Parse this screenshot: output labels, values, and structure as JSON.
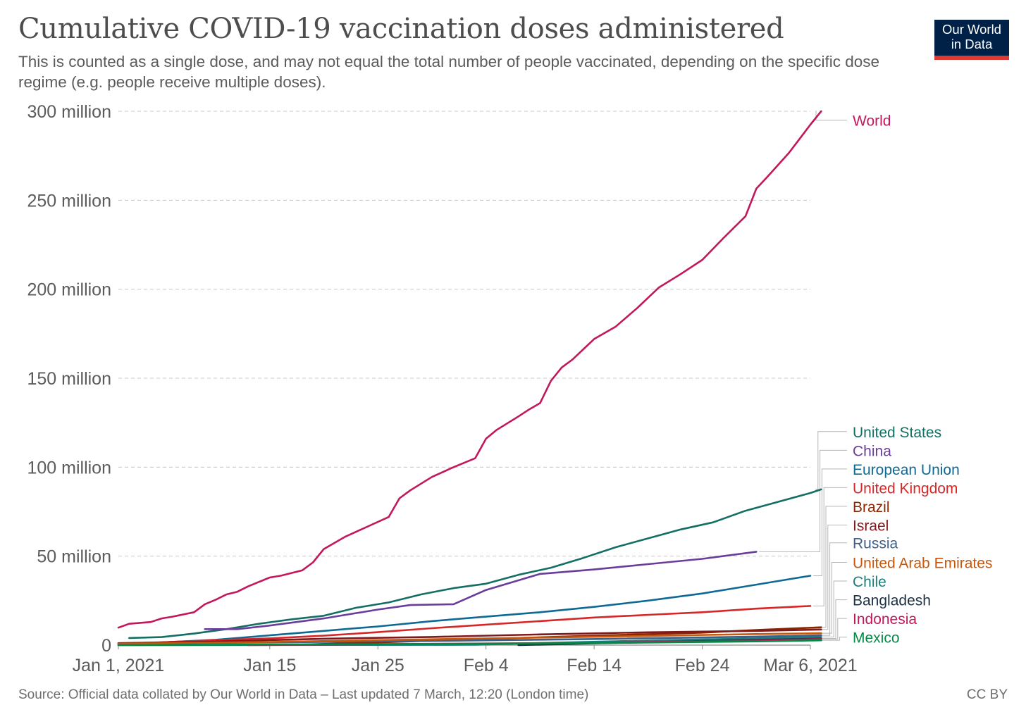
{
  "header": {
    "title": "Cumulative COVID-19 vaccination doses administered",
    "subtitle": "This is counted as a single dose, and may not equal the total number of people vaccinated, depending on the specific dose regime (e.g. people receive multiple doses)."
  },
  "logo": {
    "line1": "Our World",
    "line2": "in Data"
  },
  "footer": {
    "source": "Source: Official data collated by Our World in Data – Last updated 7 March, 12:20 (London time)",
    "license": "CC BY"
  },
  "colors": {
    "grid": "#c8c8c8",
    "axis_text": "#5b5b5b",
    "baseline": "#8a8a8a"
  },
  "chart_data": {
    "type": "line",
    "title": "Cumulative COVID-19 vaccination doses administered",
    "xlabel": "",
    "ylabel": "",
    "x_range": [
      "2021-01-01",
      "2021-03-06"
    ],
    "ylim": [
      0,
      300000000
    ],
    "grid": true,
    "legend_placement": "right",
    "x_ticks": [
      {
        "date": "2021-01-01",
        "label": "Jan 1, 2021"
      },
      {
        "date": "2021-01-15",
        "label": "Jan 15"
      },
      {
        "date": "2021-01-25",
        "label": "Jan 25"
      },
      {
        "date": "2021-02-04",
        "label": "Feb 4"
      },
      {
        "date": "2021-02-14",
        "label": "Feb 14"
      },
      {
        "date": "2021-02-24",
        "label": "Feb 24"
      },
      {
        "date": "2021-03-06",
        "label": "Mar 6, 2021"
      }
    ],
    "y_ticks": [
      {
        "value": 0,
        "label": "0"
      },
      {
        "value": 50000000,
        "label": "50 million"
      },
      {
        "value": 100000000,
        "label": "100 million"
      },
      {
        "value": 150000000,
        "label": "150 million"
      },
      {
        "value": 200000000,
        "label": "200 million"
      },
      {
        "value": 250000000,
        "label": "250 million"
      },
      {
        "value": 300000000,
        "label": "300 million"
      }
    ],
    "series": [
      {
        "name": "World",
        "color": "#c2185b",
        "label_value": 295000000,
        "points": [
          [
            "2021-01-01",
            9800000
          ],
          [
            "2021-01-02",
            12000000
          ],
          [
            "2021-01-04",
            13000000
          ],
          [
            "2021-01-05",
            15000000
          ],
          [
            "2021-01-06",
            16000000
          ],
          [
            "2021-01-08",
            18500000
          ],
          [
            "2021-01-09",
            23000000
          ],
          [
            "2021-01-10",
            25500000
          ],
          [
            "2021-01-11",
            28500000
          ],
          [
            "2021-01-12",
            30000000
          ],
          [
            "2021-01-13",
            33000000
          ],
          [
            "2021-01-15",
            38000000
          ],
          [
            "2021-01-16",
            39000000
          ],
          [
            "2021-01-18",
            42000000
          ],
          [
            "2021-01-19",
            46500000
          ],
          [
            "2021-01-20",
            54000000
          ],
          [
            "2021-01-22",
            61000000
          ],
          [
            "2021-01-24",
            66500000
          ],
          [
            "2021-01-26",
            72000000
          ],
          [
            "2021-01-27",
            82500000
          ],
          [
            "2021-01-28",
            87000000
          ],
          [
            "2021-01-30",
            94500000
          ],
          [
            "2021-02-01",
            100000000
          ],
          [
            "2021-02-03",
            105000000
          ],
          [
            "2021-02-04",
            116000000
          ],
          [
            "2021-02-05",
            121000000
          ],
          [
            "2021-02-07",
            128500000
          ],
          [
            "2021-02-08",
            132500000
          ],
          [
            "2021-02-09",
            136000000
          ],
          [
            "2021-02-10",
            148500000
          ],
          [
            "2021-02-11",
            156000000
          ],
          [
            "2021-02-12",
            160500000
          ],
          [
            "2021-02-14",
            172000000
          ],
          [
            "2021-02-16",
            179000000
          ],
          [
            "2021-02-18",
            189500000
          ],
          [
            "2021-02-20",
            201000000
          ],
          [
            "2021-02-22",
            208500000
          ],
          [
            "2021-02-24",
            216500000
          ],
          [
            "2021-02-26",
            229000000
          ],
          [
            "2021-02-28",
            241000000
          ],
          [
            "2021-03-01",
            256500000
          ],
          [
            "2021-03-02",
            263000000
          ],
          [
            "2021-03-04",
            276500000
          ],
          [
            "2021-03-05",
            284500000
          ],
          [
            "2021-03-06",
            292500000
          ],
          [
            "2021-03-07",
            300000000
          ]
        ]
      },
      {
        "name": "United States",
        "color": "#136f63",
        "label_value": 120000000,
        "points": [
          [
            "2021-01-02",
            4000000
          ],
          [
            "2021-01-05",
            4500000
          ],
          [
            "2021-01-08",
            6500000
          ],
          [
            "2021-01-11",
            9000000
          ],
          [
            "2021-01-14",
            12000000
          ],
          [
            "2021-01-17",
            14500000
          ],
          [
            "2021-01-20",
            16500000
          ],
          [
            "2021-01-23",
            21000000
          ],
          [
            "2021-01-26",
            24000000
          ],
          [
            "2021-01-29",
            28500000
          ],
          [
            "2021-02-01",
            32000000
          ],
          [
            "2021-02-04",
            34500000
          ],
          [
            "2021-02-07",
            39500000
          ],
          [
            "2021-02-10",
            43500000
          ],
          [
            "2021-02-13",
            49000000
          ],
          [
            "2021-02-16",
            55000000
          ],
          [
            "2021-02-19",
            60000000
          ],
          [
            "2021-02-22",
            65000000
          ],
          [
            "2021-02-25",
            69000000
          ],
          [
            "2021-02-28",
            75500000
          ],
          [
            "2021-03-03",
            80500000
          ],
          [
            "2021-03-06",
            85500000
          ],
          [
            "2021-03-07",
            87500000
          ]
        ]
      },
      {
        "name": "China",
        "color": "#6a3d9a",
        "label_value": 109500000,
        "points": [
          [
            "2021-01-09",
            9000000
          ],
          [
            "2021-01-12",
            9000000
          ],
          [
            "2021-01-15",
            11000000
          ],
          [
            "2021-01-20",
            15000000
          ],
          [
            "2021-01-25",
            20000000
          ],
          [
            "2021-01-28",
            22500000
          ],
          [
            "2021-02-01",
            23000000
          ],
          [
            "2021-02-04",
            31000000
          ],
          [
            "2021-02-09",
            40000000
          ],
          [
            "2021-02-14",
            42500000
          ],
          [
            "2021-02-19",
            45500000
          ],
          [
            "2021-02-24",
            48500000
          ],
          [
            "2021-03-01",
            52500000
          ]
        ]
      },
      {
        "name": "European Union",
        "color": "#0e6a94",
        "label_value": 99000000,
        "points": [
          [
            "2021-01-01",
            300000
          ],
          [
            "2021-01-05",
            1500000
          ],
          [
            "2021-01-10",
            3000000
          ],
          [
            "2021-01-15",
            5500000
          ],
          [
            "2021-01-20",
            8000000
          ],
          [
            "2021-01-25",
            10500000
          ],
          [
            "2021-01-30",
            13500000
          ],
          [
            "2021-02-04",
            16000000
          ],
          [
            "2021-02-09",
            18500000
          ],
          [
            "2021-02-14",
            21500000
          ],
          [
            "2021-02-19",
            25000000
          ],
          [
            "2021-02-24",
            29000000
          ],
          [
            "2021-03-01",
            34000000
          ],
          [
            "2021-03-04",
            37000000
          ],
          [
            "2021-03-06",
            39000000
          ]
        ]
      },
      {
        "name": "United Kingdom",
        "color": "#d62728",
        "label_value": 88500000,
        "points": [
          [
            "2021-01-01",
            900000
          ],
          [
            "2021-01-05",
            1600000
          ],
          [
            "2021-01-10",
            2800000
          ],
          [
            "2021-01-15",
            3800000
          ],
          [
            "2021-01-20",
            5300000
          ],
          [
            "2021-01-25",
            7300000
          ],
          [
            "2021-01-30",
            9500000
          ],
          [
            "2021-02-04",
            11500000
          ],
          [
            "2021-02-09",
            13500000
          ],
          [
            "2021-02-14",
            15500000
          ],
          [
            "2021-02-19",
            17000000
          ],
          [
            "2021-02-24",
            18500000
          ],
          [
            "2021-03-01",
            20500000
          ],
          [
            "2021-03-06",
            22000000
          ]
        ]
      },
      {
        "name": "Brazil",
        "color": "#8b2500",
        "label_value": 78000000,
        "points": [
          [
            "2021-01-18",
            300000
          ],
          [
            "2021-01-25",
            1500000
          ],
          [
            "2021-02-04",
            3500000
          ],
          [
            "2021-02-14",
            5300000
          ],
          [
            "2021-02-24",
            7000000
          ],
          [
            "2021-03-01",
            8500000
          ],
          [
            "2021-03-07",
            10000000
          ]
        ]
      },
      {
        "name": "Israel",
        "color": "#80191c",
        "label_value": 67500000,
        "points": [
          [
            "2021-01-01",
            1100000
          ],
          [
            "2021-01-10",
            2000000
          ],
          [
            "2021-01-20",
            3600000
          ],
          [
            "2021-01-30",
            4600000
          ],
          [
            "2021-02-09",
            6000000
          ],
          [
            "2021-02-19",
            7200000
          ],
          [
            "2021-03-01",
            8000000
          ],
          [
            "2021-03-07",
            8800000
          ]
        ]
      },
      {
        "name": "Russia",
        "color": "#3e5f8a",
        "label_value": 57500000,
        "points": [
          [
            "2021-01-01",
            800000
          ],
          [
            "2021-01-15",
            1500000
          ],
          [
            "2021-02-01",
            2500000
          ],
          [
            "2021-02-15",
            3500000
          ],
          [
            "2021-03-01",
            4800000
          ],
          [
            "2021-03-07",
            5500000
          ]
        ]
      },
      {
        "name": "United Arab Emirates",
        "color": "#c8570b",
        "label_value": 46500000,
        "points": [
          [
            "2021-01-01",
            800000
          ],
          [
            "2021-01-15",
            1800000
          ],
          [
            "2021-02-01",
            3500000
          ],
          [
            "2021-02-15",
            4800000
          ],
          [
            "2021-03-01",
            6200000
          ],
          [
            "2021-03-07",
            6700000
          ]
        ]
      },
      {
        "name": "Chile",
        "color": "#1a7f7a",
        "label_value": 36000000,
        "points": [
          [
            "2021-01-01",
            0
          ],
          [
            "2021-02-03",
            200000
          ],
          [
            "2021-02-10",
            1300000
          ],
          [
            "2021-02-20",
            2700000
          ],
          [
            "2021-03-01",
            3800000
          ],
          [
            "2021-03-07",
            4600000
          ]
        ]
      },
      {
        "name": "Bangladesh",
        "color": "#1d3044",
        "label_value": 25500000,
        "points": [
          [
            "2021-02-07",
            0
          ],
          [
            "2021-02-14",
            1000000
          ],
          [
            "2021-02-24",
            2300000
          ],
          [
            "2021-03-07",
            3700000
          ]
        ]
      },
      {
        "name": "Indonesia",
        "color": "#c2185b",
        "label_value": 15000000,
        "points": [
          [
            "2021-01-13",
            0
          ],
          [
            "2021-01-25",
            500000
          ],
          [
            "2021-02-14",
            1300000
          ],
          [
            "2021-03-01",
            2500000
          ],
          [
            "2021-03-07",
            3400000
          ]
        ]
      },
      {
        "name": "Mexico",
        "color": "#008c45",
        "label_value": 4500000,
        "points": [
          [
            "2021-01-01",
            0
          ],
          [
            "2021-01-15",
            300000
          ],
          [
            "2021-02-01",
            700000
          ],
          [
            "2021-02-15",
            1200000
          ],
          [
            "2021-03-01",
            2100000
          ],
          [
            "2021-03-07",
            2700000
          ]
        ]
      }
    ]
  }
}
